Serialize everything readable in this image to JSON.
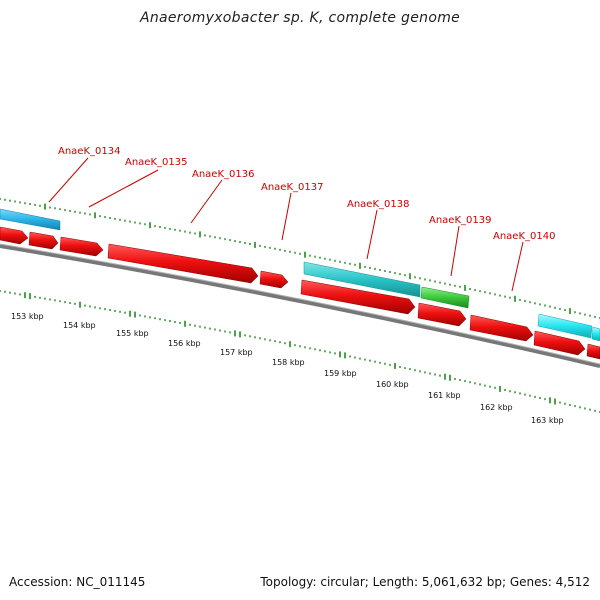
{
  "title": "Anaeromyxobacter sp. K, complete genome",
  "footer": {
    "accession": "Accession: NC_011145",
    "topology": "Topology: circular; Length: 5,061,632 bp; Genes: 4,512"
  },
  "colors": {
    "forward_gene": "#e8101a",
    "reverse_blue": "#2ab4e6",
    "reverse_teal": "#29c4c8",
    "reverse_cyan": "#25e6ef",
    "rna_green": "#3cc83c",
    "backbone": "#808080",
    "ticks": "#1f8a1f",
    "label": "#cc0000"
  },
  "gene_labels": [
    "AnaeK_0134",
    "AnaeK_0135",
    "AnaeK_0136",
    "AnaeK_0137",
    "AnaeK_0138",
    "AnaeK_0139",
    "AnaeK_0140"
  ],
  "kbp_labels": [
    "153 kbp",
    "154 kbp",
    "155 kbp",
    "156 kbp",
    "157 kbp",
    "158 kbp",
    "159 kbp",
    "160 kbp",
    "161 kbp",
    "162 kbp",
    "163 kbp"
  ]
}
